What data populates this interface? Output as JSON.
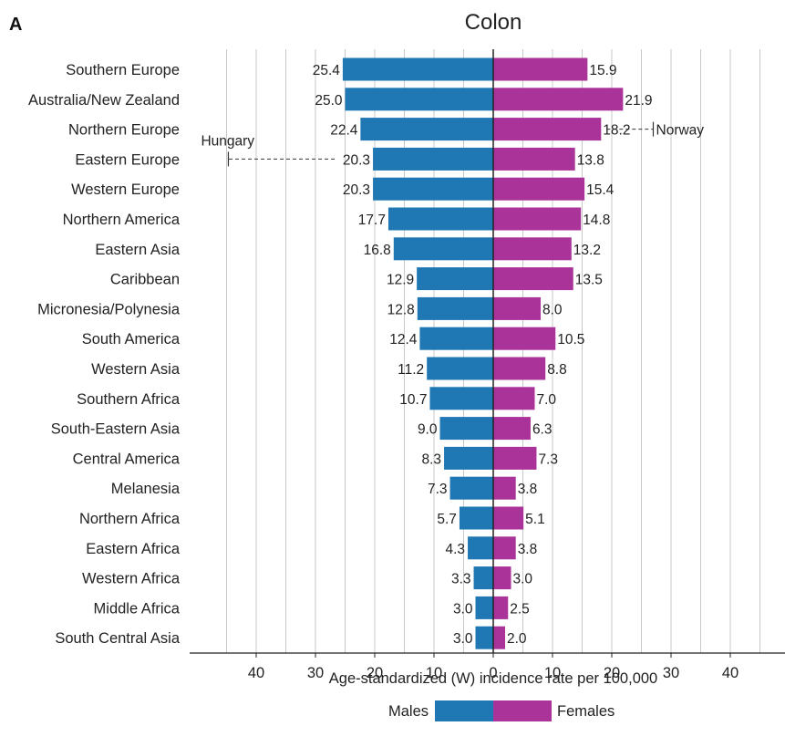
{
  "panel_label": "A",
  "chart_data": {
    "type": "bar",
    "orientation": "horizontal",
    "layout": "diverging",
    "title": "Colon",
    "xlabel": "Age-standardized (W) incidence rate per 100,000",
    "ylabel": "",
    "xlim": [
      -45,
      45
    ],
    "xticks": [
      -40,
      -30,
      -20,
      -10,
      0,
      10,
      20,
      30,
      40
    ],
    "xtick_labels": [
      "40",
      "30",
      "20",
      "10",
      "0",
      "10",
      "20",
      "30",
      "40"
    ],
    "grid": true,
    "legend_position": "bottom-center",
    "categories": [
      "Southern Europe",
      "Australia/New Zealand",
      "Northern Europe",
      "Eastern Europe",
      "Western Europe",
      "Northern America",
      "Eastern Asia",
      "Caribbean",
      "Micronesia/Polynesia",
      "South America",
      "Western Asia",
      "Southern Africa",
      "South-Eastern Asia",
      "Central America",
      "Melanesia",
      "Northern Africa",
      "Eastern Africa",
      "Western Africa",
      "Middle Africa",
      "South Central Asia"
    ],
    "series": [
      {
        "name": "Males",
        "color": "#1F78B4",
        "side": "left",
        "values": [
          25.4,
          25.0,
          22.4,
          20.3,
          20.3,
          17.7,
          16.8,
          12.9,
          12.8,
          12.4,
          11.2,
          10.7,
          9.0,
          8.3,
          7.3,
          5.7,
          4.3,
          3.3,
          3.0,
          3.0
        ],
        "labels": [
          "25.4",
          "25.0",
          "22.4",
          "20.3",
          "20.3",
          "17.7",
          "16.8",
          "12.9",
          "12.8",
          "12.4",
          "11.2",
          "10.7",
          "9.0",
          "8.3",
          "7.3",
          "5.7",
          "4.3",
          "3.3",
          "3.0",
          "3.0"
        ]
      },
      {
        "name": "Females",
        "color": "#A93399",
        "side": "right",
        "values": [
          15.9,
          21.9,
          18.2,
          13.8,
          15.4,
          14.8,
          13.2,
          13.5,
          8.0,
          10.5,
          8.8,
          7.0,
          6.3,
          7.3,
          3.8,
          5.1,
          3.8,
          3.0,
          2.5,
          2.0
        ],
        "labels": [
          "15.9",
          "21.9",
          "18.2",
          "13.8",
          "15.4",
          "14.8",
          "13.2",
          "13.5",
          "8.0",
          "10.5",
          "8.8",
          "7.0",
          "6.3",
          "7.3",
          "3.8",
          "5.1",
          "3.8",
          "3.0",
          "2.5",
          "2.0"
        ]
      }
    ],
    "annotations": [
      {
        "text": "Hungary",
        "series": "Males",
        "category": "Eastern Europe",
        "value": 44.7
      },
      {
        "text": "Norway",
        "series": "Females",
        "category": "Northern Europe",
        "value": 27.0
      }
    ]
  }
}
